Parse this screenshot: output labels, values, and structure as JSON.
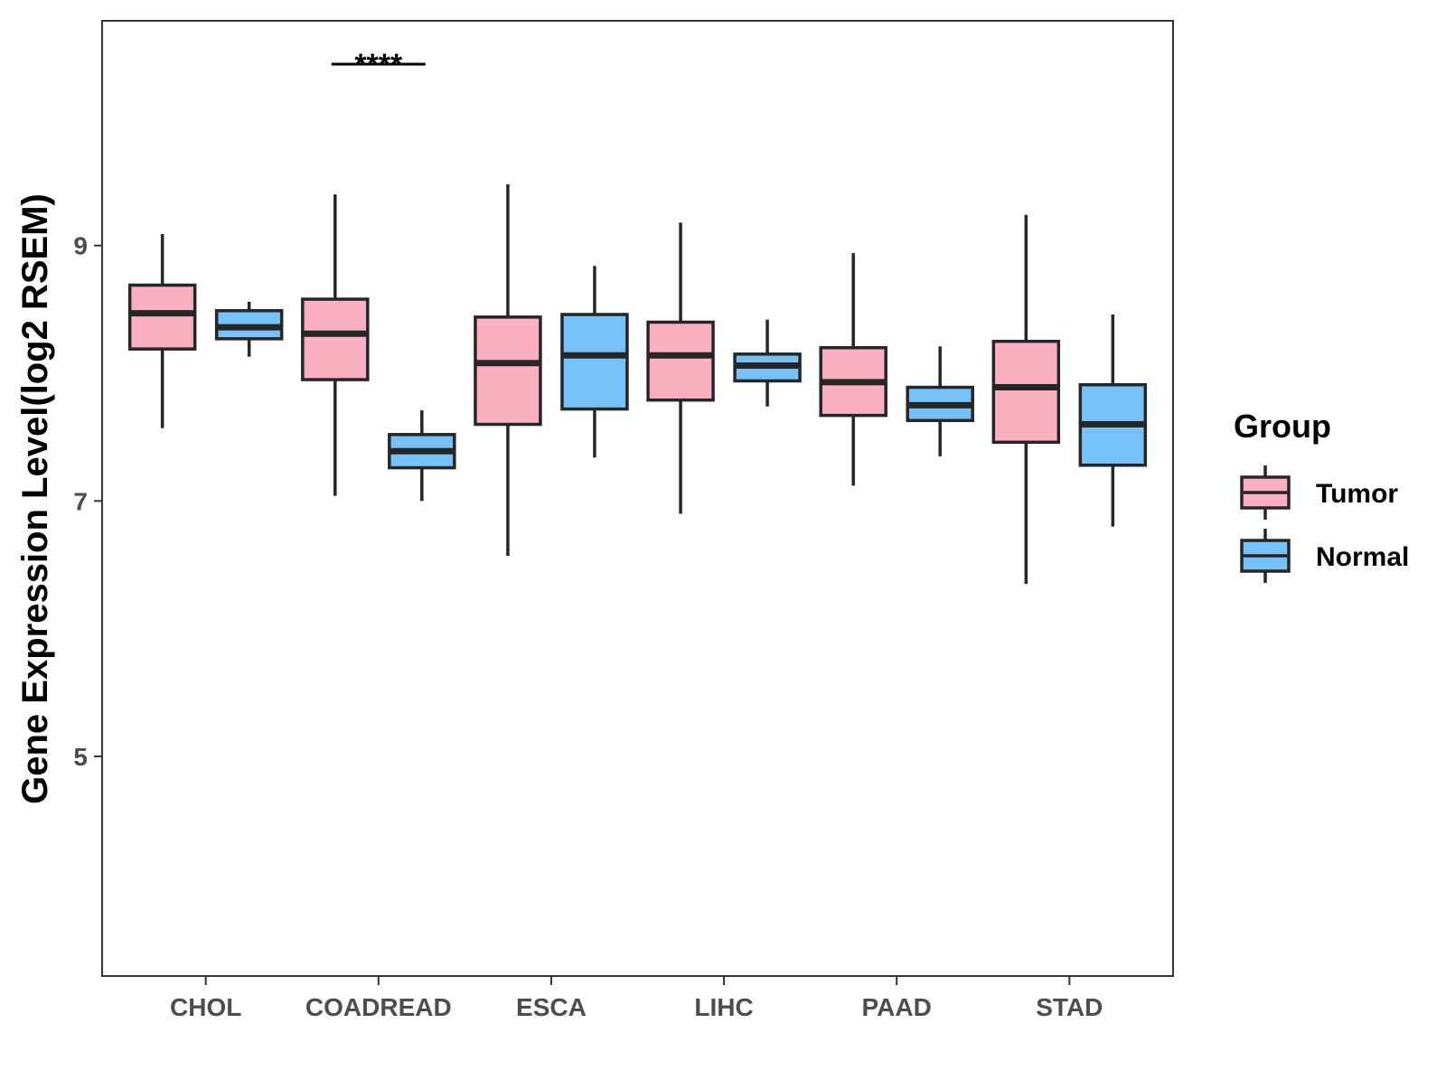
{
  "chart_data": {
    "type": "boxplot",
    "title": "",
    "xlabel": "",
    "ylabel": "Gene Expression Level(log2 RSEM)",
    "ylim": [
      3.28,
      10.76
    ],
    "yticks": [
      5,
      7,
      9
    ],
    "categories": [
      "CHOL",
      "COADREAD",
      "ESCA",
      "LIHC",
      "PAAD",
      "STAD"
    ],
    "legend": {
      "title": "Group",
      "position": "right",
      "entries": [
        {
          "label": "Tumor",
          "color": "#FBB0C1"
        },
        {
          "label": "Normal",
          "color": "#75C1F8"
        }
      ]
    },
    "series": [
      {
        "name": "Tumor",
        "color": "#FBB0C1",
        "boxes": [
          {
            "category": "CHOL",
            "min": 7.57,
            "q1": 8.19,
            "median": 8.47,
            "q3": 8.69,
            "max": 9.09
          },
          {
            "category": "COADREAD",
            "min": 7.04,
            "q1": 7.95,
            "median": 8.31,
            "q3": 8.58,
            "max": 9.4
          },
          {
            "category": "ESCA",
            "min": 6.57,
            "q1": 7.6,
            "median": 8.08,
            "q3": 8.44,
            "max": 9.48
          },
          {
            "category": "LIHC",
            "min": 6.9,
            "q1": 7.79,
            "median": 8.14,
            "q3": 8.4,
            "max": 9.18
          },
          {
            "category": "PAAD",
            "min": 7.12,
            "q1": 7.67,
            "median": 7.93,
            "q3": 8.2,
            "max": 8.94
          },
          {
            "category": "STAD",
            "min": 6.35,
            "q1": 7.46,
            "median": 7.89,
            "q3": 8.25,
            "max": 9.24
          }
        ]
      },
      {
        "name": "Normal",
        "color": "#75C1F8",
        "boxes": [
          {
            "category": "CHOL",
            "min": 8.13,
            "q1": 8.27,
            "median": 8.36,
            "q3": 8.49,
            "max": 8.56
          },
          {
            "category": "COADREAD",
            "min": 7.0,
            "q1": 7.26,
            "median": 7.39,
            "q3": 7.52,
            "max": 7.71
          },
          {
            "category": "ESCA",
            "min": 7.34,
            "q1": 7.72,
            "median": 8.14,
            "q3": 8.46,
            "max": 8.84
          },
          {
            "category": "LIHC",
            "min": 7.74,
            "q1": 7.94,
            "median": 8.06,
            "q3": 8.15,
            "max": 8.42
          },
          {
            "category": "PAAD",
            "min": 7.35,
            "q1": 7.63,
            "median": 7.75,
            "q3": 7.89,
            "max": 8.21
          },
          {
            "category": "STAD",
            "min": 6.8,
            "q1": 7.28,
            "median": 7.6,
            "q3": 7.91,
            "max": 8.46
          }
        ]
      }
    ],
    "annotations": [
      {
        "category": "COADREAD",
        "text": "****",
        "y": 10.42
      }
    ]
  }
}
